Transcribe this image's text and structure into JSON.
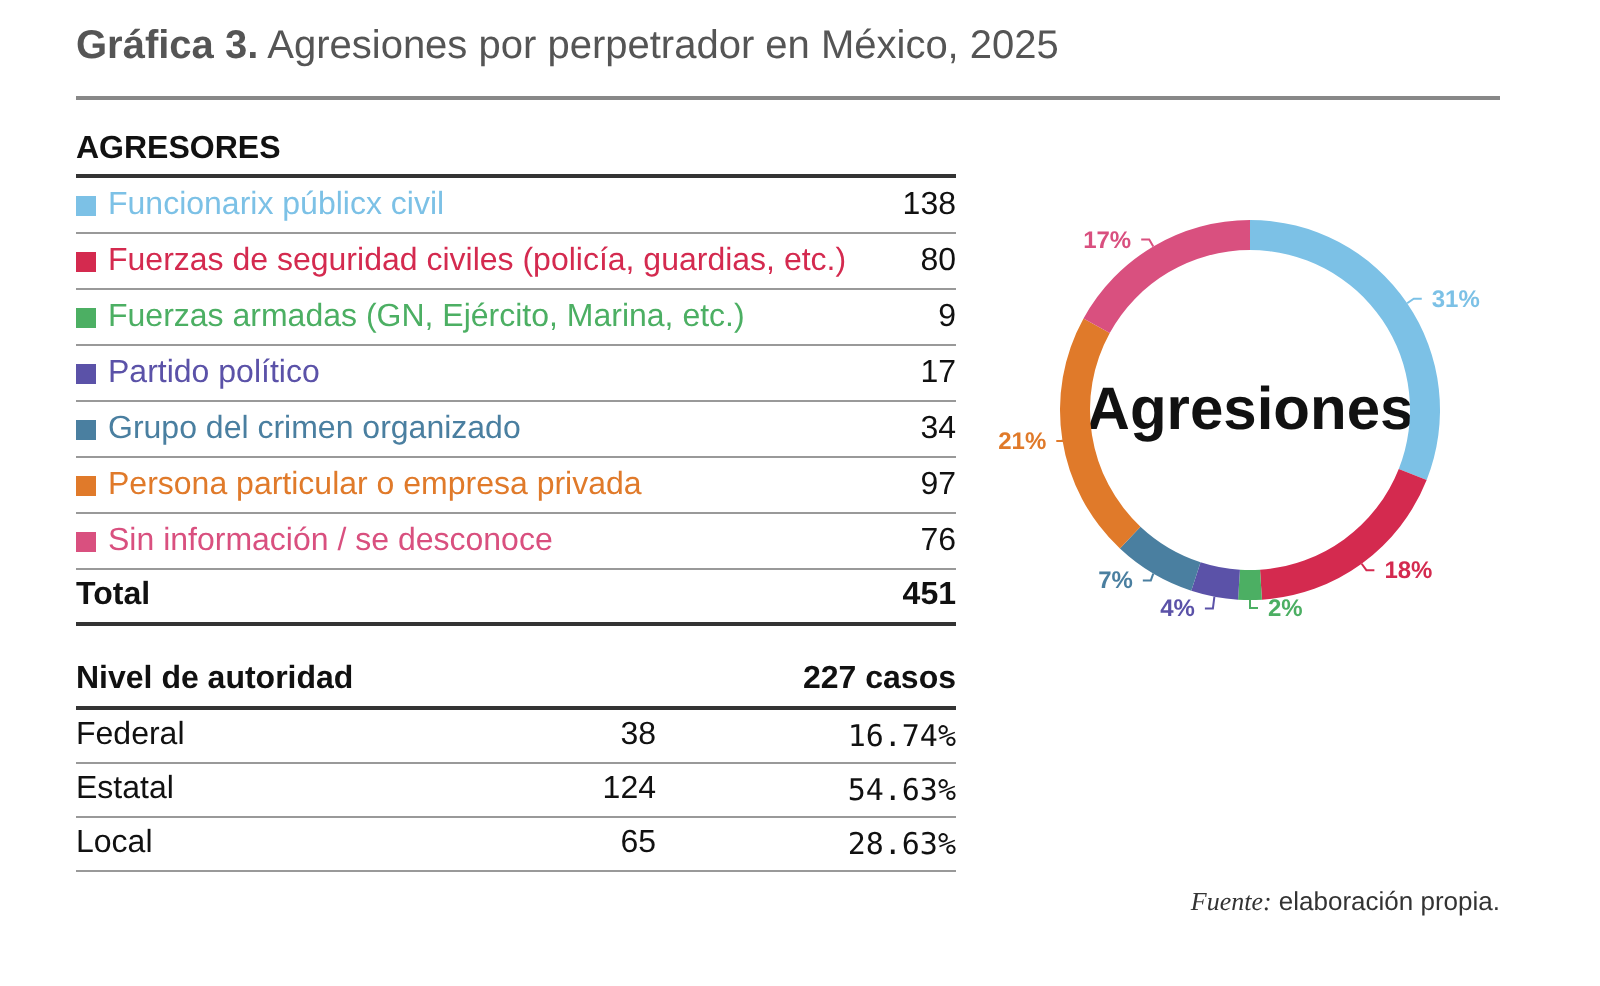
{
  "chart_data": {
    "type": "donut",
    "title": "Gráfica 3. Agresiones por perpetrador en México, 2025",
    "legend_title": "AGRESORES",
    "legend": "left",
    "categories": [
      "Funcionarix públicx civil",
      "Fuerzas de seguridad civiles (policía, guardias, etc.)",
      "Fuerzas armadas (GN, Ejército, Marina, etc.)",
      "Partido político",
      "Grupo del crimen organizado",
      "Persona particular o empresa privada",
      "Sin información / se desconoce"
    ],
    "values": [
      31,
      18,
      2,
      4,
      7,
      21,
      17
    ],
    "value_labels": [
      "31%",
      "18%",
      "2%",
      "4%",
      "7%",
      "21%",
      "17%"
    ],
    "colors": [
      "#7cc1e6",
      "#d42a4f",
      "#4caf63",
      "#5b52a8",
      "#4a7fa0",
      "#e07a2a",
      "#d9507f"
    ],
    "annotations": [
      "Agresiones",
      "138",
      "80",
      "9",
      "17",
      "34",
      "97",
      "76",
      "Total",
      "451",
      "Nivel de autoridad",
      "227 casos",
      "Federal",
      "38",
      "16.74%",
      "Estatal",
      "124",
      "54.63%",
      "Local",
      "65",
      "28.63%",
      "Fuente: elaboración propia."
    ]
  }
}
